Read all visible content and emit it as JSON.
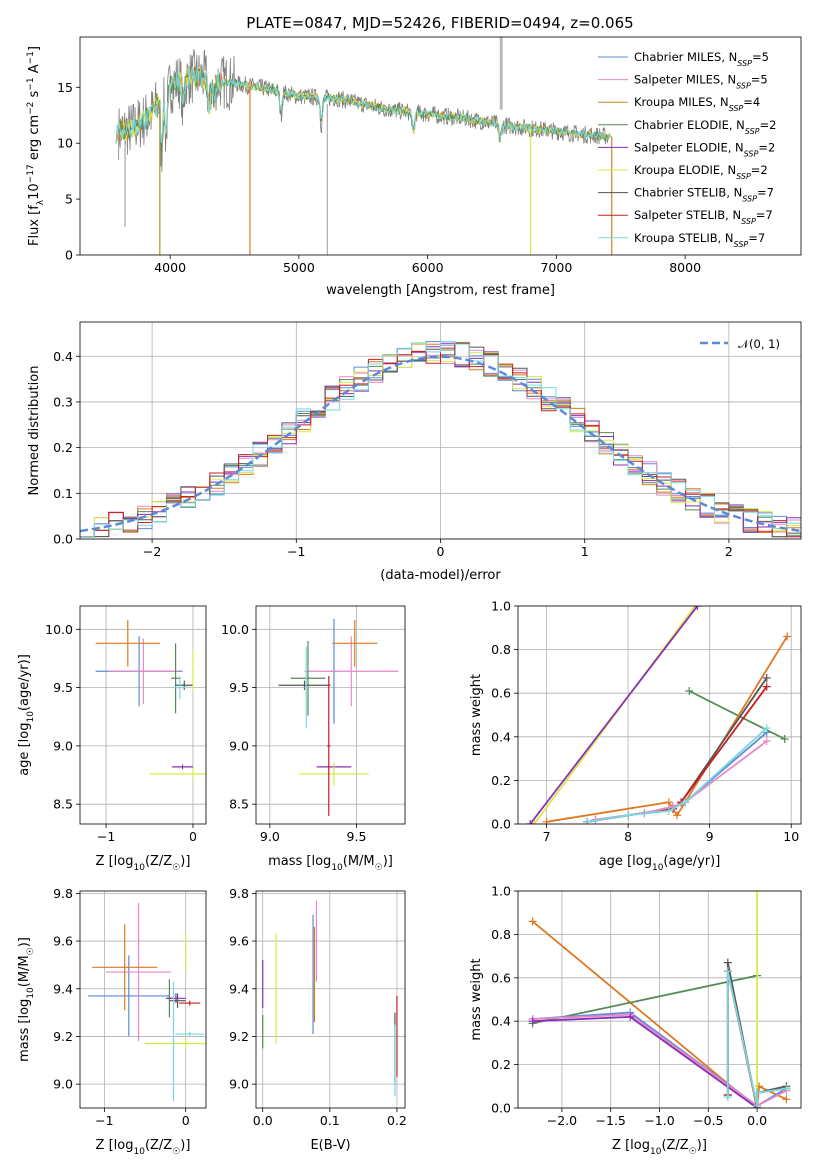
{
  "figure": {
    "title": "PLATE=0847, MJD=52426, FIBERID=0494, z=0.065"
  },
  "colors": {
    "Chabrier MILES": "#5b8bd6",
    "Salpeter MILES": "#e888c8",
    "Kroupa MILES": "#b89028",
    "Chabrier ELODIE": "#568a56",
    "Salpeter ELODIE": "#8a2fb8",
    "Kroupa ELODIE": "#d8ea48",
    "Chabrier STELIB": "#555555",
    "Salpeter STELIB": "#c82020",
    "Kroupa STELIB": "#78d8e0",
    "fit_orange": "#e07820",
    "data_grey": "#808080",
    "gauss": "#5b8bd6"
  },
  "chart_data": [
    {
      "id": "spectrum",
      "type": "line",
      "xlabel": "wavelength [Angstrom, rest frame]",
      "ylabel": "Flux [f_λ10^-17 erg cm^-2 s^-1 A^-1]",
      "xlim": [
        3300,
        8900
      ],
      "ylim": [
        0,
        19.5
      ],
      "xticks": [
        4000,
        5000,
        6000,
        7000,
        8000
      ],
      "yticks": [
        0,
        5,
        10,
        15
      ],
      "grid": false,
      "legend_position": "top-right",
      "series": [
        {
          "name": "Chabrier MILES",
          "nssp": "5"
        },
        {
          "name": "Salpeter MILES",
          "nssp": "5"
        },
        {
          "name": "Kroupa MILES",
          "nssp": "4"
        },
        {
          "name": "Chabrier ELODIE",
          "nssp": "2"
        },
        {
          "name": "Salpeter ELODIE",
          "nssp": "2"
        },
        {
          "name": "Kroupa ELODIE",
          "nssp": "2"
        },
        {
          "name": "Chabrier STELIB",
          "nssp": "7"
        },
        {
          "name": "Salpeter STELIB",
          "nssp": "7"
        },
        {
          "name": "Kroupa STELIB",
          "nssp": "7"
        }
      ],
      "continuum": {
        "x": [
          3600,
          3700,
          3850,
          3950,
          4050,
          4200,
          4400,
          4700,
          5000,
          5300,
          5700,
          6000,
          6300,
          6600,
          6900,
          7200,
          7400
        ],
        "y": [
          11.0,
          11.3,
          12.5,
          14.5,
          15.5,
          16.0,
          15.5,
          15.0,
          14.2,
          14.0,
          13.0,
          12.6,
          12.2,
          11.6,
          11.2,
          10.8,
          10.6
        ]
      }
    },
    {
      "id": "residuals",
      "type": "line",
      "xlabel": "(data-model)/error",
      "ylabel": "Normed distribution",
      "xlim": [
        -2.5,
        2.5
      ],
      "ylim": [
        0,
        0.475
      ],
      "xticks": [
        -2,
        -1,
        0,
        1,
        2
      ],
      "yticks": [
        0.0,
        0.1,
        0.2,
        0.3,
        0.4
      ],
      "grid": true,
      "legend_position": "top-right",
      "legend": "𝒩(0, 1)",
      "gaussian": {
        "mean": 0,
        "sigma": 1
      }
    },
    {
      "id": "age_vs_Z",
      "type": "scatter",
      "xlabel": "Z [log₁₀(Z/Z☉)]",
      "ylabel": "age  [log₁₀(age/yr)]",
      "xlim": [
        -1.3,
        0.15
      ],
      "ylim": [
        8.33,
        10.2
      ],
      "xticks": [
        -1,
        0
      ],
      "yticks": [
        8.5,
        9.0,
        9.5,
        10.0
      ],
      "grid": true,
      "points": [
        {
          "s": "Chabrier MILES",
          "x": -0.62,
          "xerr": 0.5,
          "y": 9.64,
          "yerr": 0.3
        },
        {
          "s": "Salpeter MILES",
          "x": -0.57,
          "xerr": 0.4,
          "y": 9.64,
          "yerr": 0.28
        },
        {
          "s": "fit_orange",
          "x": -0.75,
          "xerr": 0.37,
          "y": 9.88,
          "yerr": 0.2
        },
        {
          "s": "Chabrier ELODIE",
          "x": -0.2,
          "xerr": 0.05,
          "y": 9.58,
          "yerr": 0.3
        },
        {
          "s": "Salpeter ELODIE",
          "x": -0.12,
          "xerr": 0.12,
          "y": 8.82,
          "yerr": 0.02
        },
        {
          "s": "Kroupa ELODIE",
          "x": 0.0,
          "xerr": 0.5,
          "y": 8.76,
          "yerr": 0.05
        },
        {
          "s": "Chabrier STELIB",
          "x": -0.1,
          "xerr": 0.1,
          "y": 9.52,
          "yerr": 0.04
        },
        {
          "s": "Kroupa STELIB",
          "x": -0.15,
          "xerr": 0.08,
          "y": 9.5,
          "yerr": 0.1
        },
        {
          "s": "Kroupa ELODIE",
          "x": 0.0,
          "xerr": 0.01,
          "y": 9.65,
          "yerr": 0.18
        }
      ]
    },
    {
      "id": "age_vs_mass",
      "type": "scatter",
      "xlabel": "mass [log₁₀(M/M☉)]",
      "ylabel": "",
      "xlim": [
        8.92,
        9.78
      ],
      "ylim": [
        8.33,
        10.2
      ],
      "xticks": [
        9.0,
        9.5
      ],
      "yticks": [
        8.5,
        9.0,
        9.5,
        10.0
      ],
      "grid": true,
      "points": [
        {
          "s": "Chabrier MILES",
          "x": 9.37,
          "xerr": 0.02,
          "y": 9.64,
          "yerr": 0.45
        },
        {
          "s": "Salpeter MILES",
          "x": 9.47,
          "xerr": 0.27,
          "y": 9.64,
          "yerr": 0.3
        },
        {
          "s": "fit_orange",
          "x": 9.49,
          "xerr": 0.13,
          "y": 9.88,
          "yerr": 0.2
        },
        {
          "s": "Chabrier ELODIE",
          "x": 9.22,
          "xerr": 0.1,
          "y": 9.58,
          "yerr": 0.32
        },
        {
          "s": "Salpeter ELODIE",
          "x": 9.37,
          "xerr": 0.1,
          "y": 8.82,
          "yerr": 0.02
        },
        {
          "s": "Kroupa ELODIE",
          "x": 9.37,
          "xerr": 0.2,
          "y": 8.76,
          "yerr": 0.1
        },
        {
          "s": "Chabrier STELIB",
          "x": 9.2,
          "xerr": 0.15,
          "y": 9.52,
          "yerr": 0.04
        },
        {
          "s": "Salpeter STELIB",
          "x": 9.34,
          "xerr": 0.01,
          "y": 9.0,
          "yerr": 0.6
        },
        {
          "s": "Kroupa STELIB",
          "x": 9.21,
          "xerr": 0.01,
          "y": 9.5,
          "yerr": 0.35
        }
      ]
    },
    {
      "id": "weight_vs_age",
      "type": "line",
      "xlabel": "age  [log₁₀(age/yr)]",
      "ylabel": "mass weight",
      "xlim": [
        6.65,
        10.12
      ],
      "ylim": [
        0,
        1.0
      ],
      "xticks": [
        7,
        8,
        9,
        10
      ],
      "yticks": [
        0.0,
        0.2,
        0.4,
        0.6,
        0.8,
        1.0
      ],
      "grid": true,
      "series": [
        {
          "s": "Kroupa ELODIE",
          "x": [
            6.85,
            8.82
          ],
          "y": [
            0.0,
            1.0
          ]
        },
        {
          "s": "Salpeter ELODIE",
          "x": [
            6.8,
            8.85
          ],
          "y": [
            0.0,
            1.0
          ]
        },
        {
          "s": "Chabrier ELODIE",
          "x": [
            8.75,
            9.92
          ],
          "y": [
            0.61,
            0.39
          ]
        },
        {
          "s": "fit_orange",
          "x": [
            7.0,
            8.5,
            8.6,
            8.7,
            9.95
          ],
          "y": [
            0.01,
            0.1,
            0.04,
            0.1,
            0.86
          ]
        },
        {
          "s": "Chabrier STELIB",
          "x": [
            7.5,
            8.0,
            8.55,
            8.65,
            9.7
          ],
          "y": [
            0.01,
            0.04,
            0.07,
            0.1,
            0.67
          ]
        },
        {
          "s": "Salpeter STELIB",
          "x": [
            7.5,
            8.0,
            8.55,
            8.65,
            9.7
          ],
          "y": [
            0.01,
            0.04,
            0.07,
            0.1,
            0.63
          ]
        },
        {
          "s": "Chabrier MILES",
          "x": [
            7.6,
            8.2,
            8.55,
            8.7,
            9.7
          ],
          "y": [
            0.02,
            0.05,
            0.08,
            0.1,
            0.42
          ]
        },
        {
          "s": "Salpeter MILES",
          "x": [
            7.6,
            8.2,
            8.55,
            8.7,
            9.7
          ],
          "y": [
            0.02,
            0.05,
            0.08,
            0.1,
            0.38
          ]
        },
        {
          "s": "Kroupa STELIB",
          "x": [
            7.5,
            8.0,
            8.5,
            8.7,
            9.7
          ],
          "y": [
            0.01,
            0.04,
            0.06,
            0.1,
            0.44
          ]
        }
      ]
    },
    {
      "id": "mass_vs_Z",
      "type": "scatter",
      "xlabel": "Z [log₁₀(Z/Z☉)]",
      "ylabel": "mass [log₁₀(M/M☉)]",
      "xlim": [
        -1.3,
        0.25
      ],
      "ylim": [
        8.9,
        9.81
      ],
      "xticks": [
        -1,
        0
      ],
      "yticks": [
        9.0,
        9.2,
        9.4,
        9.6,
        9.8
      ],
      "grid": true,
      "points": [
        {
          "s": "Chabrier MILES",
          "x": -0.7,
          "xerr": 0.5,
          "y": 9.37,
          "yerr": 0.17
        },
        {
          "s": "Salpeter MILES",
          "x": -0.58,
          "xerr": 0.4,
          "y": 9.47,
          "yerr": 0.29
        },
        {
          "s": "fit_orange",
          "x": -0.75,
          "xerr": 0.4,
          "y": 9.49,
          "yerr": 0.18
        },
        {
          "s": "Chabrier ELODIE",
          "x": -0.2,
          "xerr": 0.04,
          "y": 9.36,
          "yerr": 0.08
        },
        {
          "s": "Salpeter ELODIE",
          "x": -0.12,
          "xerr": 0.12,
          "y": 9.36,
          "yerr": 0.02
        },
        {
          "s": "Kroupa ELODIE",
          "x": 0.0,
          "xerr": 0.5,
          "y": 9.17,
          "yerr": 0.02
        },
        {
          "s": "Kroupa ELODIE",
          "x": 0.0,
          "xerr": 0.01,
          "y": 9.55,
          "yerr": 0.08
        },
        {
          "s": "Chabrier STELIB",
          "x": -0.1,
          "xerr": 0.1,
          "y": 9.35,
          "yerr": 0.03
        },
        {
          "s": "Salpeter STELIB",
          "x": 0.05,
          "xerr": 0.13,
          "y": 9.34,
          "yerr": 0.01
        },
        {
          "s": "Kroupa STELIB",
          "x": -0.15,
          "xerr": 0.01,
          "y": 9.18,
          "yerr": 0.25
        },
        {
          "s": "Kroupa STELIB",
          "x": 0.05,
          "xerr": 0.18,
          "y": 9.21,
          "yerr": 0.01
        }
      ]
    },
    {
      "id": "mass_vs_EBV",
      "type": "scatter",
      "xlabel": "E(B-V)",
      "ylabel": "",
      "xlim": [
        -0.01,
        0.212
      ],
      "ylim": [
        8.9,
        9.81
      ],
      "xticks": [
        0.0,
        0.1,
        0.2
      ],
      "yticks": [
        9.0,
        9.2,
        9.4,
        9.6,
        9.8
      ],
      "grid": true,
      "points": [
        {
          "s": "Salpeter ELODIE",
          "x": 0.0,
          "xerr": 0,
          "y": 9.42,
          "yerr": 0.1
        },
        {
          "s": "Chabrier ELODIE",
          "x": 0.0,
          "xerr": 0,
          "y": 9.22,
          "yerr": 0.07
        },
        {
          "s": "Kroupa ELODIE",
          "x": 0.02,
          "xerr": 0,
          "y": 9.4,
          "yerr": 0.23
        },
        {
          "s": "Chabrier MILES",
          "x": 0.075,
          "xerr": 0,
          "y": 9.46,
          "yerr": 0.25
        },
        {
          "s": "fit_orange",
          "x": 0.077,
          "xerr": 0,
          "y": 9.46,
          "yerr": 0.2
        },
        {
          "s": "Salpeter MILES",
          "x": 0.08,
          "xerr": 0,
          "y": 9.6,
          "yerr": 0.17
        },
        {
          "s": "Salpeter STELIB",
          "x": 0.2,
          "xerr": 0,
          "y": 9.2,
          "yerr": 0.17
        },
        {
          "s": "Chabrier STELIB",
          "x": 0.197,
          "xerr": 0,
          "y": 9.15,
          "yerr": 0.15
        },
        {
          "s": "Kroupa STELIB",
          "x": 0.197,
          "xerr": 0,
          "y": 9.1,
          "yerr": 0.15
        }
      ]
    },
    {
      "id": "weight_vs_Z",
      "type": "line",
      "xlabel": "Z [log₁₀(Z/Z☉)]",
      "ylabel": "mass weight",
      "xlim": [
        -2.45,
        0.45
      ],
      "ylim": [
        0,
        1.0
      ],
      "xticks": [
        -2.0,
        -1.5,
        -1.0,
        -0.5,
        0.0
      ],
      "yticks": [
        0.0,
        0.2,
        0.4,
        0.6,
        0.8,
        1.0
      ],
      "grid": true,
      "series": [
        {
          "s": "fit_orange",
          "x": [
            -2.3,
            0.0,
            0.02,
            0.3
          ],
          "y": [
            0.86,
            0.0,
            0.1,
            0.04
          ]
        },
        {
          "s": "Chabrier ELODIE",
          "x": [
            -2.3,
            0.0
          ],
          "y": [
            0.39,
            0.61
          ]
        },
        {
          "s": "Kroupa ELODIE",
          "x": [
            0.0,
            0.0
          ],
          "y": [
            0.0,
            1.0
          ]
        },
        {
          "s": "Chabrier MILES",
          "x": [
            -2.3,
            -1.3,
            0.0,
            0.3
          ],
          "y": [
            0.41,
            0.44,
            0.01,
            0.09
          ]
        },
        {
          "s": "Salpeter MILES",
          "x": [
            -2.3,
            -1.3,
            0.0,
            0.3
          ],
          "y": [
            0.41,
            0.43,
            0.01,
            0.08
          ]
        },
        {
          "s": "Salpeter ELODIE",
          "x": [
            -2.3,
            -1.3,
            0.0
          ],
          "y": [
            0.4,
            0.42,
            0.0
          ]
        },
        {
          "s": "Chabrier STELIB",
          "x": [
            -0.3,
            -0.3,
            0.0,
            0.0,
            0.3
          ],
          "y": [
            0.06,
            0.67,
            0.0,
            0.07,
            0.1
          ]
        },
        {
          "s": "Salpeter STELIB",
          "x": [
            -0.3,
            -0.3,
            0.0,
            0.0,
            0.3
          ],
          "y": [
            0.06,
            0.63,
            0.0,
            0.07,
            0.09
          ]
        },
        {
          "s": "Kroupa STELIB",
          "x": [
            -0.3,
            -0.3,
            0.0,
            0.0,
            0.3
          ],
          "y": [
            0.05,
            0.63,
            0.01,
            0.07,
            0.09
          ]
        }
      ]
    }
  ]
}
